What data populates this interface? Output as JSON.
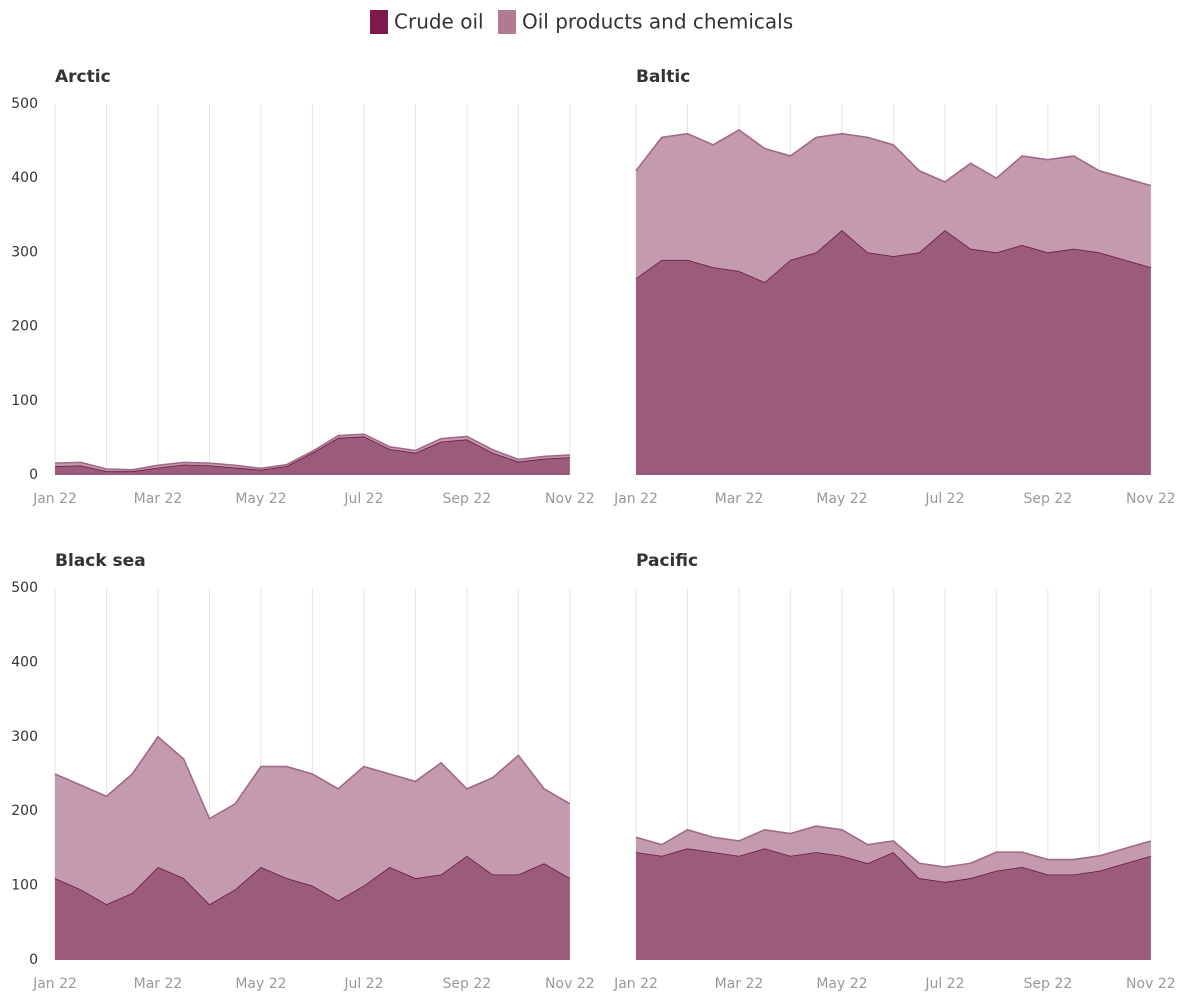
{
  "chart_data": [
    {
      "type": "stacked-area",
      "title": "Arctic",
      "x": [
        0,
        0.5,
        1,
        1.5,
        2,
        2.5,
        3,
        3.5,
        4,
        4.5,
        5,
        5.5,
        6,
        6.5,
        7,
        7.5,
        8,
        8.5,
        9,
        9.5,
        10
      ],
      "xlim": [
        0,
        10.1
      ],
      "xticks": [
        {
          "value": 0,
          "label": "Jan 22"
        },
        {
          "value": 2,
          "label": "Mar 22"
        },
        {
          "value": 4,
          "label": "May 22"
        },
        {
          "value": 6,
          "label": "Jul 22"
        },
        {
          "value": 8,
          "label": "Sep 22"
        },
        {
          "value": 10,
          "label": "Nov 22"
        }
      ],
      "xminor": [
        1,
        3,
        5,
        7,
        9
      ],
      "ylim": [
        0,
        500
      ],
      "yticks": [
        0,
        100,
        200,
        300,
        400,
        500
      ],
      "series": [
        {
          "name": "Crude oil",
          "color": "#7b1a4b",
          "values": [
            12,
            13,
            5,
            5,
            10,
            14,
            13,
            10,
            7,
            12,
            30,
            50,
            52,
            35,
            30,
            45,
            48,
            30,
            18,
            22,
            24
          ]
        },
        {
          "name": "Oil products and chemicals",
          "color": "#b07a93",
          "values": [
            4,
            4,
            3,
            2,
            3,
            3,
            3,
            3,
            2,
            2,
            2,
            3,
            3,
            3,
            3,
            4,
            4,
            4,
            3,
            3,
            3
          ]
        }
      ]
    },
    {
      "type": "stacked-area",
      "title": "Baltic",
      "x": [
        0,
        0.5,
        1,
        1.5,
        2,
        2.5,
        3,
        3.5,
        4,
        4.5,
        5,
        5.5,
        6,
        6.5,
        7,
        7.5,
        8,
        8.5,
        9,
        9.5,
        10
      ],
      "xlim": [
        0,
        10.1
      ],
      "xticks": [
        {
          "value": 0,
          "label": "Jan 22"
        },
        {
          "value": 2,
          "label": "Mar 22"
        },
        {
          "value": 4,
          "label": "May 22"
        },
        {
          "value": 6,
          "label": "Jul 22"
        },
        {
          "value": 8,
          "label": "Sep 22"
        },
        {
          "value": 10,
          "label": "Nov 22"
        }
      ],
      "xminor": [
        1,
        3,
        5,
        7,
        9
      ],
      "ylim": [
        0,
        500
      ],
      "series": [
        {
          "name": "Crude oil",
          "color": "#7b1a4b",
          "values": [
            265,
            290,
            290,
            280,
            275,
            260,
            290,
            300,
            330,
            300,
            295,
            300,
            330,
            305,
            300,
            310,
            300,
            305,
            300,
            290,
            280
          ]
        },
        {
          "name": "Oil products and chemicals",
          "color": "#b07a93",
          "values": [
            145,
            165,
            170,
            165,
            190,
            180,
            140,
            155,
            130,
            155,
            150,
            110,
            65,
            115,
            100,
            120,
            125,
            125,
            110,
            110,
            110
          ]
        }
      ]
    },
    {
      "type": "stacked-area",
      "title": "Black sea",
      "x": [
        0,
        0.5,
        1,
        1.5,
        2,
        2.5,
        3,
        3.5,
        4,
        4.5,
        5,
        5.5,
        6,
        6.5,
        7,
        7.5,
        8,
        8.5,
        9,
        9.5,
        10
      ],
      "xlim": [
        0,
        10.1
      ],
      "xticks": [
        {
          "value": 0,
          "label": "Jan 22"
        },
        {
          "value": 2,
          "label": "Mar 22"
        },
        {
          "value": 4,
          "label": "May 22"
        },
        {
          "value": 6,
          "label": "Jul 22"
        },
        {
          "value": 8,
          "label": "Sep 22"
        },
        {
          "value": 10,
          "label": "Nov 22"
        }
      ],
      "xminor": [
        1,
        3,
        5,
        7,
        9
      ],
      "ylim": [
        0,
        500
      ],
      "yticks": [
        0,
        100,
        200,
        300,
        400,
        500
      ],
      "series": [
        {
          "name": "Crude oil",
          "color": "#7b1a4b",
          "values": [
            110,
            95,
            75,
            90,
            125,
            110,
            75,
            95,
            125,
            110,
            100,
            80,
            100,
            125,
            110,
            115,
            140,
            115,
            115,
            130,
            110
          ]
        },
        {
          "name": "Oil products and chemicals",
          "color": "#b07a93",
          "values": [
            140,
            140,
            145,
            160,
            175,
            160,
            115,
            115,
            135,
            150,
            150,
            150,
            160,
            125,
            130,
            150,
            90,
            130,
            160,
            100,
            100
          ]
        }
      ]
    },
    {
      "type": "stacked-area",
      "title": "Pacific",
      "x": [
        0,
        0.5,
        1,
        1.5,
        2,
        2.5,
        3,
        3.5,
        4,
        4.5,
        5,
        5.5,
        6,
        6.5,
        7,
        7.5,
        8,
        8.5,
        9,
        9.5,
        10
      ],
      "xlim": [
        0,
        10.1
      ],
      "xticks": [
        {
          "value": 0,
          "label": "Jan 22"
        },
        {
          "value": 2,
          "label": "Mar 22"
        },
        {
          "value": 4,
          "label": "May 22"
        },
        {
          "value": 6,
          "label": "Jul 22"
        },
        {
          "value": 8,
          "label": "Sep 22"
        },
        {
          "value": 10,
          "label": "Nov 22"
        }
      ],
      "xminor": [
        1,
        3,
        5,
        7,
        9
      ],
      "ylim": [
        0,
        500
      ],
      "series": [
        {
          "name": "Crude oil",
          "color": "#7b1a4b",
          "values": [
            145,
            140,
            150,
            145,
            140,
            150,
            140,
            145,
            140,
            130,
            145,
            110,
            105,
            110,
            120,
            125,
            115,
            115,
            120,
            130,
            140
          ]
        },
        {
          "name": "Oil products and chemicals",
          "color": "#b07a93",
          "values": [
            20,
            15,
            25,
            20,
            20,
            25,
            30,
            35,
            35,
            25,
            15,
            20,
            20,
            20,
            25,
            20,
            20,
            20,
            20,
            20,
            20
          ]
        }
      ]
    }
  ]
}
